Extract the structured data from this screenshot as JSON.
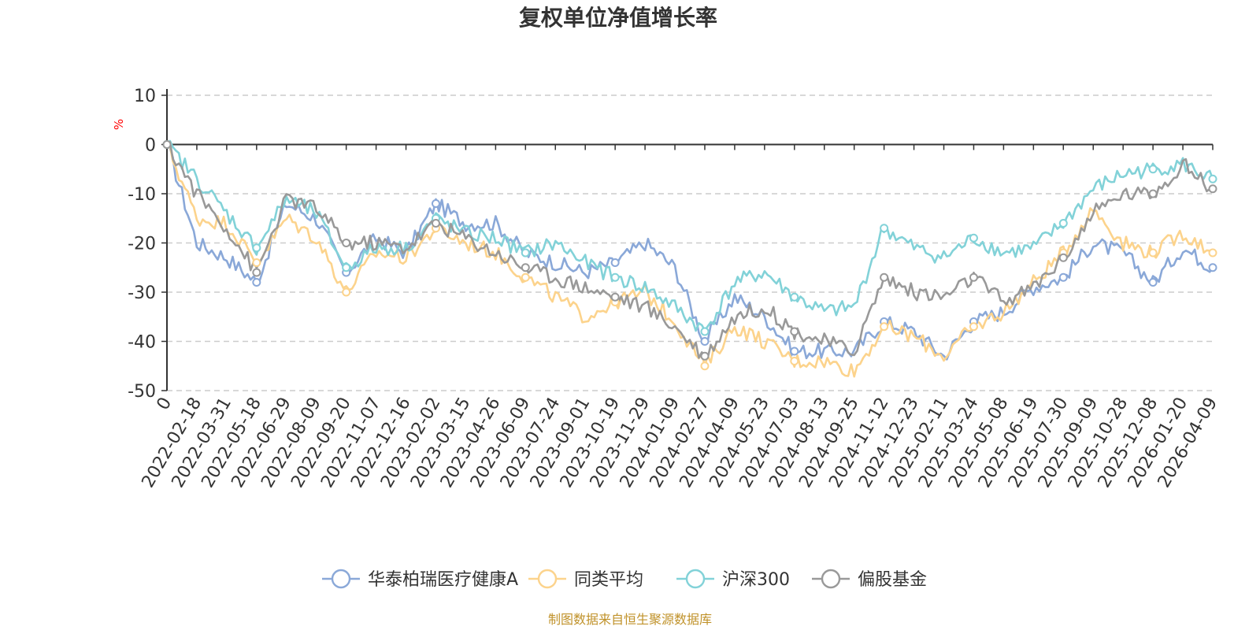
{
  "chart_data": {
    "type": "line",
    "title": "复权单位净值增长率",
    "ylabel": "%",
    "ylim": [
      -50,
      10
    ],
    "yticks": [
      10,
      0,
      -10,
      -20,
      -30,
      -40,
      -50
    ],
    "grid": true,
    "legend_position": "bottom-center",
    "x_tick_labels": [
      "0",
      "2022-02-18",
      "2022-03-31",
      "2022-05-18",
      "2022-06-29",
      "2022-08-09",
      "2022-09-20",
      "2022-11-07",
      "2022-12-16",
      "2023-02-02",
      "2023-03-15",
      "2023-04-26",
      "2023-06-09",
      "2023-07-24",
      "2023-09-01",
      "2023-10-19",
      "2023-11-29",
      "2024-01-09",
      "2024-02-27",
      "2024-04-09",
      "2024-05-23",
      "2024-07-03",
      "2024-08-13",
      "2024-09-25",
      "2024-11-12",
      "2024-12-23",
      "2025-02-11",
      "2025-03-24",
      "2025-05-08",
      "2025-06-19",
      "2025-07-30",
      "2025-09-09",
      "2025-10-28",
      "2025-12-08",
      "2026-01-20",
      "2026-04-09"
    ],
    "series": [
      {
        "name": "华泰柏瑞医疗健康A",
        "color": "#8aa8d8",
        "values": [
          0,
          -20,
          -23,
          -28,
          -12,
          -15,
          -26,
          -19,
          -22,
          -12,
          -16,
          -16,
          -22,
          -24,
          -26,
          -24,
          -20,
          -25,
          -40,
          -31,
          -35,
          -42,
          -42,
          -42,
          -36,
          -38,
          -43,
          -36,
          -34,
          -29,
          -27,
          -20,
          -22,
          -28,
          -21,
          -25
        ]
      },
      {
        "name": "同类平均",
        "color": "#fcd38c",
        "values": [
          0,
          -15,
          -16,
          -24,
          -15,
          -19,
          -30,
          -22,
          -23,
          -17,
          -20,
          -22,
          -27,
          -31,
          -35,
          -32,
          -30,
          -36,
          -45,
          -37,
          -40,
          -44,
          -44,
          -46,
          -37,
          -39,
          -43,
          -37,
          -34,
          -28,
          -22,
          -13,
          -20,
          -22,
          -18,
          -22
        ]
      },
      {
        "name": "沪深300",
        "color": "#82d2d8",
        "values": [
          0,
          -7,
          -14,
          -21,
          -11,
          -14,
          -25,
          -21,
          -21,
          -15,
          -18,
          -19,
          -22,
          -20,
          -24,
          -27,
          -29,
          -33,
          -38,
          -28,
          -26,
          -31,
          -34,
          -33,
          -17,
          -21,
          -23,
          -19,
          -22,
          -21,
          -16,
          -9,
          -6,
          -5,
          -4,
          -7
        ]
      },
      {
        "name": "偏股基金",
        "color": "#999999",
        "values": [
          0,
          -10,
          -17,
          -26,
          -11,
          -13,
          -20,
          -20,
          -21,
          -16,
          -19,
          -22,
          -25,
          -27,
          -29,
          -31,
          -33,
          -37,
          -43,
          -35,
          -33,
          -38,
          -40,
          -42,
          -27,
          -30,
          -31,
          -27,
          -32,
          -29,
          -23,
          -14,
          -10,
          -10,
          -4,
          -9
        ]
      }
    ]
  },
  "source_text": "制图数据来自恒生聚源数据库"
}
